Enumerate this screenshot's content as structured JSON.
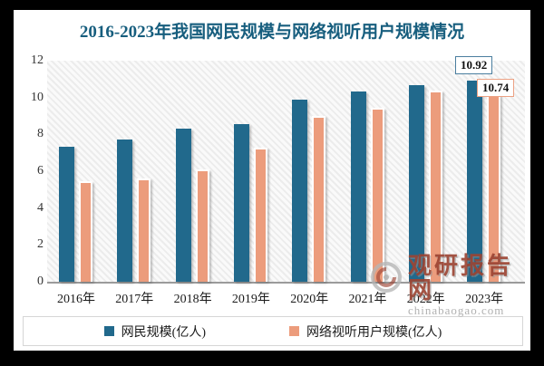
{
  "title": {
    "text": "2016-2023年我国网民规模与网络视听用户规模情况",
    "color": "#175e7e"
  },
  "chart_data": {
    "type": "bar",
    "title": "2016-2023年我国网民规模与网络视听用户规模情况",
    "categories": [
      "2016年",
      "2017年",
      "2018年",
      "2019年",
      "2020年",
      "2021年",
      "2022年",
      "2023年"
    ],
    "series": [
      {
        "name": "网民规模(亿人)",
        "color": "#21698c",
        "values": [
          7.31,
          7.72,
          8.29,
          8.54,
          9.89,
          10.32,
          10.67,
          10.92
        ]
      },
      {
        "name": "网络视听用户规模(亿人)",
        "color": "#ec9c7c",
        "values": [
          5.45,
          5.61,
          6.09,
          7.26,
          9.01,
          9.43,
          10.4,
          10.74
        ]
      }
    ],
    "ylim": [
      0,
      12
    ],
    "yticks": [
      0,
      2,
      4,
      6,
      8,
      10,
      12
    ],
    "grid": false,
    "legend_position": "bottom",
    "data_labels": [
      {
        "series": 0,
        "category": "2023年",
        "text": "10.92"
      },
      {
        "series": 1,
        "category": "2023年",
        "text": "10.74"
      }
    ]
  },
  "watermark": {
    "brand": "观研报告网",
    "domain": "chinabaogao.com",
    "logo": "guanyan-swirl-logo",
    "brand_color": "#9c4534"
  },
  "colors": {
    "frame_background": "#000000",
    "card_background": "#ffffff",
    "axis_text": "#333333",
    "netizen_bar": "#21698c",
    "audiovisual_bar": "#ec9c7c",
    "netizen_label_border": "#4a7e9f",
    "audiovisual_label_border": "#eca183"
  }
}
